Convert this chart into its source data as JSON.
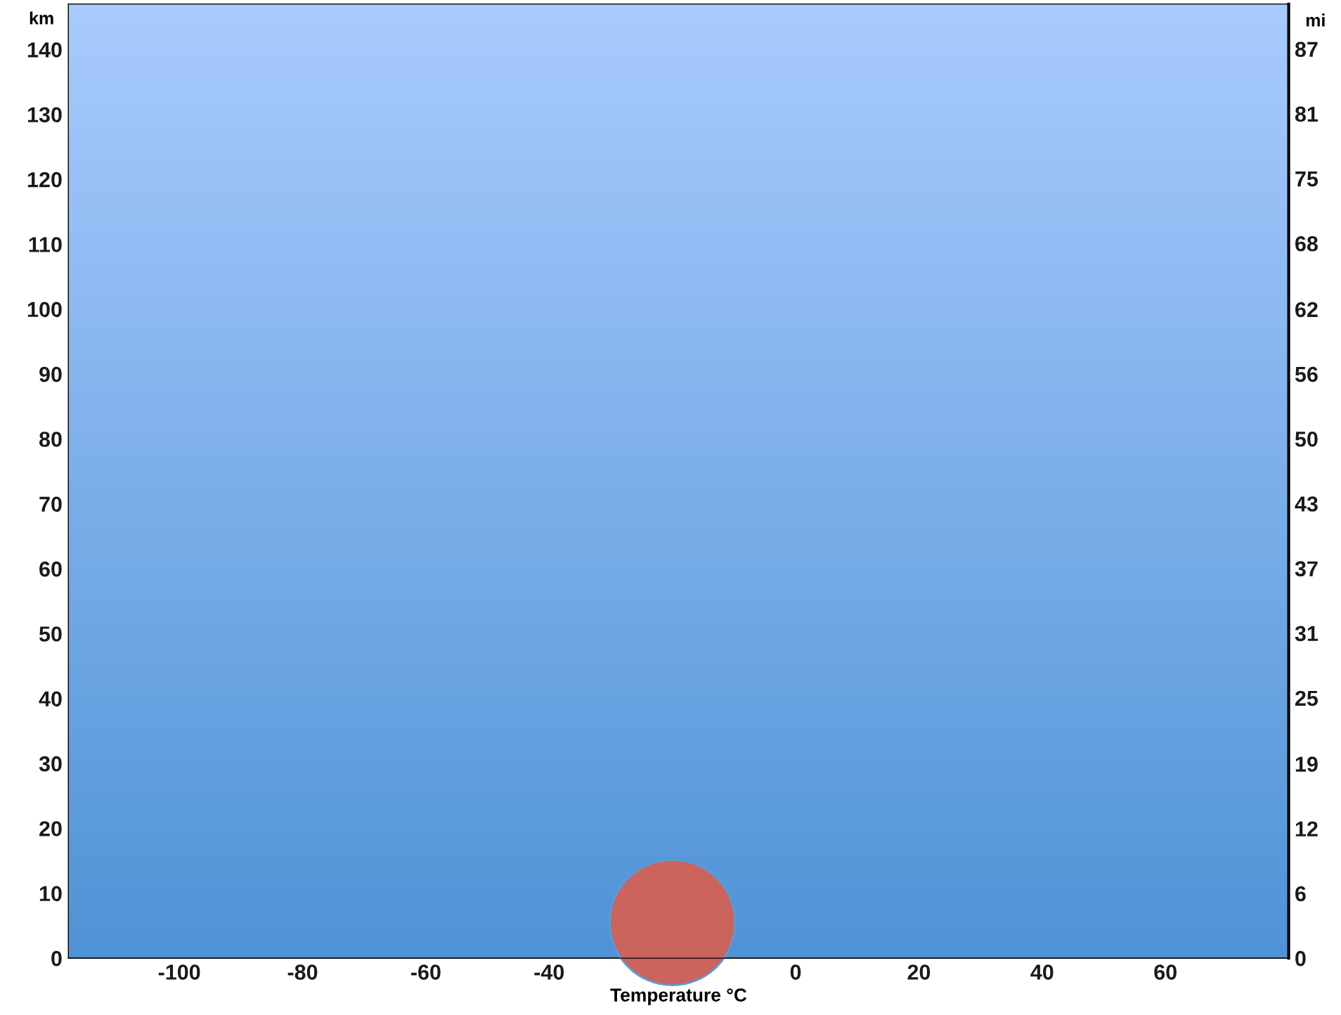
{
  "chart_data": {
    "type": "bubble",
    "xlabel": "Temperature °C",
    "ylabel": "km",
    "y2label": "mi",
    "x": [
      -20
    ],
    "values": [
      5.5
    ],
    "sizes": [
      1
    ],
    "color": "#cb645c",
    "xlim": [
      -118,
      80
    ],
    "xticks": [
      -100,
      -80,
      -60,
      -40,
      0,
      20,
      40,
      60
    ],
    "ylim": [
      0,
      147
    ],
    "yticks": [
      0,
      10,
      20,
      30,
      40,
      50,
      60,
      70,
      80,
      90,
      100,
      110,
      120,
      130,
      140
    ],
    "y2lim": [
      0,
      91.3
    ],
    "y2ticks": [
      {
        "value": 0,
        "label": "0"
      },
      {
        "value": 6.2,
        "label": "6"
      },
      {
        "value": 12.4,
        "label": "12"
      },
      {
        "value": 18.6,
        "label": "19"
      },
      {
        "value": 24.9,
        "label": "25"
      },
      {
        "value": 31.1,
        "label": "31"
      },
      {
        "value": 37.3,
        "label": "37"
      },
      {
        "value": 43.5,
        "label": "43"
      },
      {
        "value": 49.7,
        "label": "50"
      },
      {
        "value": 55.9,
        "label": "56"
      },
      {
        "value": 62.1,
        "label": "62"
      },
      {
        "value": 68.4,
        "label": "68"
      },
      {
        "value": 74.6,
        "label": "75"
      },
      {
        "value": 80.8,
        "label": "81"
      },
      {
        "value": 87.0,
        "label": "87"
      }
    ],
    "grid": false
  }
}
